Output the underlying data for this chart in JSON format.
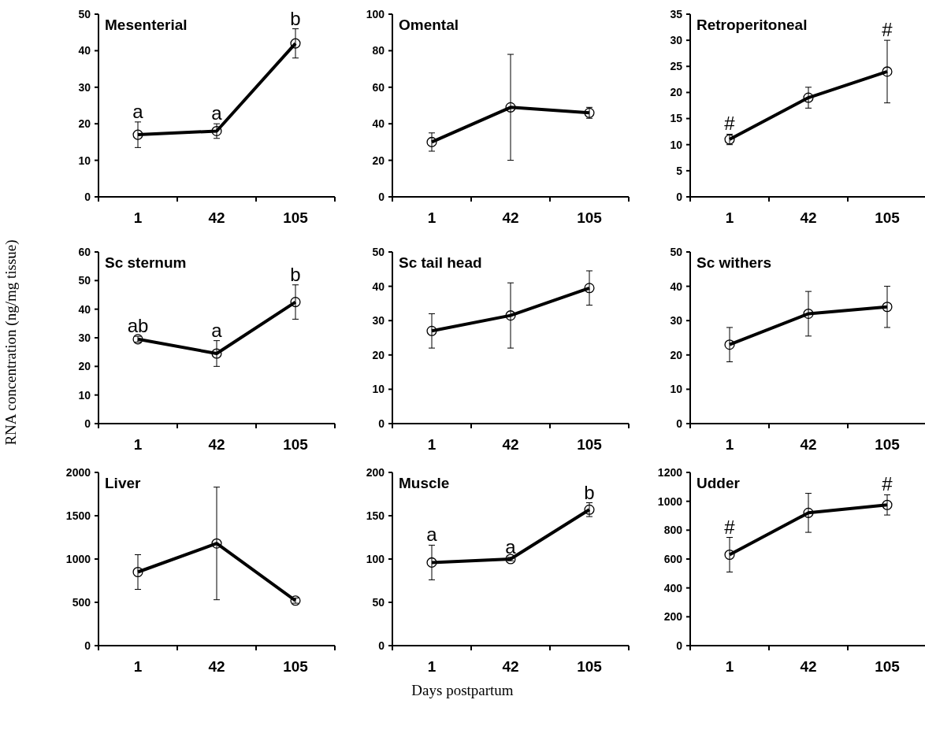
{
  "chart_data": [
    {
      "type": "line",
      "title": "Mesenterial",
      "categories": [
        "1",
        "42",
        "105"
      ],
      "series": [
        {
          "color": "#000000",
          "values": [
            17,
            18,
            42
          ],
          "errors": [
            3.5,
            2,
            4
          ]
        }
      ],
      "ylim": [
        0,
        50
      ],
      "yticks": [
        0,
        10,
        20,
        30,
        40,
        50
      ],
      "marker": "circle",
      "grid": false,
      "annotations": [
        {
          "text": "a",
          "x": "1",
          "y": 17
        },
        {
          "text": "a",
          "x": "42",
          "y": 18
        },
        {
          "text": "b",
          "x": "105",
          "y": 42
        }
      ]
    },
    {
      "type": "line",
      "title": "Omental",
      "categories": [
        "1",
        "42",
        "105"
      ],
      "series": [
        {
          "color": "#000000",
          "values": [
            30,
            49,
            46
          ],
          "errors": [
            5,
            29,
            3
          ]
        }
      ],
      "ylim": [
        0,
        100
      ],
      "yticks": [
        0,
        20,
        40,
        60,
        80,
        100
      ],
      "marker": "circle",
      "grid": false
    },
    {
      "type": "line",
      "title": "Retroperitoneal",
      "categories": [
        "1",
        "42",
        "105"
      ],
      "series": [
        {
          "color": "#000000",
          "values": [
            11,
            19,
            24
          ],
          "errors": [
            1,
            2,
            6
          ]
        }
      ],
      "ylim": [
        0,
        35
      ],
      "yticks": [
        0,
        5,
        10,
        15,
        20,
        25,
        30,
        35
      ],
      "marker": "circle",
      "grid": false,
      "annotations": [
        {
          "text": "#",
          "x": "1",
          "y": 11
        },
        {
          "text": "#",
          "x": "105",
          "y": 24
        }
      ]
    },
    {
      "type": "line",
      "title": "Sc sternum",
      "categories": [
        "1",
        "42",
        "105"
      ],
      "series": [
        {
          "color": "#000000",
          "values": [
            29.5,
            24.5,
            42.5
          ],
          "errors": [
            1,
            4.5,
            6
          ]
        }
      ],
      "ylim": [
        0,
        60
      ],
      "yticks": [
        0,
        10,
        20,
        30,
        40,
        50,
        60
      ],
      "marker": "circle",
      "grid": false,
      "ylabel": "RNA concentration (ng/mg tissue)",
      "annotations": [
        {
          "text": "ab",
          "x": "1",
          "y": 29.5
        },
        {
          "text": "a",
          "x": "42",
          "y": 24.5
        },
        {
          "text": "b",
          "x": "105",
          "y": 42.5
        }
      ]
    },
    {
      "type": "line",
      "title": "Sc tail head",
      "categories": [
        "1",
        "42",
        "105"
      ],
      "series": [
        {
          "color": "#000000",
          "values": [
            27,
            31.5,
            39.5
          ],
          "errors": [
            5,
            9.5,
            5
          ]
        }
      ],
      "ylim": [
        0,
        50
      ],
      "yticks": [
        0,
        10,
        20,
        30,
        40,
        50
      ],
      "marker": "circle",
      "grid": false
    },
    {
      "type": "line",
      "title": "Sc withers",
      "categories": [
        "1",
        "42",
        "105"
      ],
      "series": [
        {
          "color": "#000000",
          "values": [
            23,
            32,
            34
          ],
          "errors": [
            5,
            6.5,
            6
          ]
        }
      ],
      "ylim": [
        0,
        50
      ],
      "yticks": [
        0,
        10,
        20,
        30,
        40,
        50
      ],
      "marker": "circle",
      "grid": false
    },
    {
      "type": "line",
      "title": "Liver",
      "categories": [
        "1",
        "42",
        "105"
      ],
      "series": [
        {
          "color": "#000000",
          "values": [
            850,
            1180,
            520
          ],
          "errors": [
            200,
            650,
            30
          ]
        }
      ],
      "ylim": [
        0,
        2000
      ],
      "yticks": [
        0,
        500,
        1000,
        1500,
        2000
      ],
      "marker": "circle",
      "grid": false
    },
    {
      "type": "line",
      "title": "Muscle",
      "categories": [
        "1",
        "42",
        "105"
      ],
      "series": [
        {
          "color": "#000000",
          "values": [
            96,
            100,
            157
          ],
          "errors": [
            20,
            2,
            8
          ]
        }
      ],
      "ylim": [
        0,
        200
      ],
      "yticks": [
        0,
        50,
        100,
        150,
        200
      ],
      "marker": "circle",
      "grid": false,
      "xlabel": "Days postpartum",
      "annotations": [
        {
          "text": "a",
          "x": "1",
          "y": 96
        },
        {
          "text": "a",
          "x": "42",
          "y": 100
        },
        {
          "text": "b",
          "x": "105",
          "y": 157
        }
      ]
    },
    {
      "type": "line",
      "title": "Udder",
      "categories": [
        "1",
        "42",
        "105"
      ],
      "series": [
        {
          "color": "#000000",
          "values": [
            630,
            920,
            975
          ],
          "errors": [
            120,
            135,
            70
          ]
        }
      ],
      "ylim": [
        0,
        1200
      ],
      "yticks": [
        0,
        200,
        400,
        600,
        800,
        1000,
        1200
      ],
      "marker": "circle",
      "grid": false,
      "annotations": [
        {
          "text": "#",
          "x": "1",
          "y": 630
        },
        {
          "text": "#",
          "x": "105",
          "y": 975
        }
      ]
    }
  ]
}
